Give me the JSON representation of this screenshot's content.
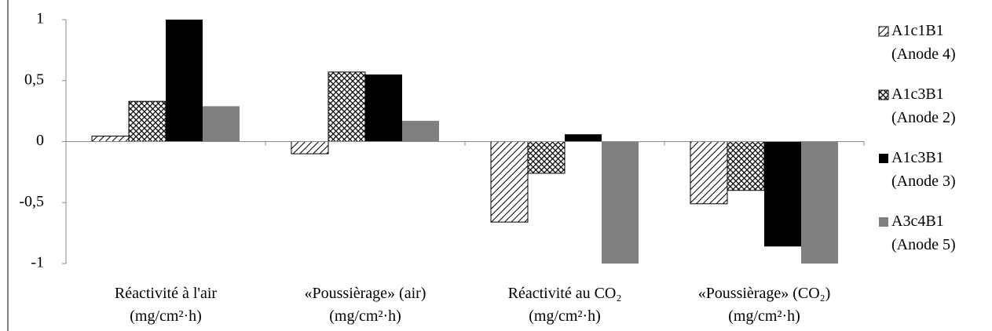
{
  "chart_data": {
    "type": "bar",
    "categories": [
      "Réactivité à l'air\n(mg/cm²·h)",
      "«Poussièrage» (air)\n(mg/cm²·h)",
      "Réactivité au CO₂\n(mg/cm²·h)",
      "«Poussièrage» (CO₂)\n(mg/cm²·h)"
    ],
    "series": [
      {
        "name": "A1c1B1\n(Anode 4)",
        "color": "#000000",
        "pattern": "diagonal",
        "values": [
          0.045,
          -0.1,
          -0.66,
          -0.51
        ]
      },
      {
        "name": "A1c3B1\n(Anode 2)",
        "color": "#000000",
        "pattern": "crosshatch",
        "values": [
          0.33,
          0.57,
          -0.26,
          -0.4
        ]
      },
      {
        "name": "A1c3B1\n(Anode 3)",
        "color": "#000000",
        "pattern": "solid",
        "values": [
          1,
          0.55,
          0.06,
          -0.86
        ]
      },
      {
        "name": "A3c4B1\n(Anode 5)",
        "color": "#808080",
        "pattern": "solid",
        "values": [
          0.29,
          0.17,
          -1,
          -1
        ]
      }
    ],
    "ylim": [
      -1,
      1
    ],
    "yticks": [
      -1,
      {
        "value": -0.5,
        "label": "-0,5"
      },
      0,
      {
        "value": 0.5,
        "label": "0,5"
      },
      1
    ],
    "grid": false,
    "legend": "right"
  }
}
